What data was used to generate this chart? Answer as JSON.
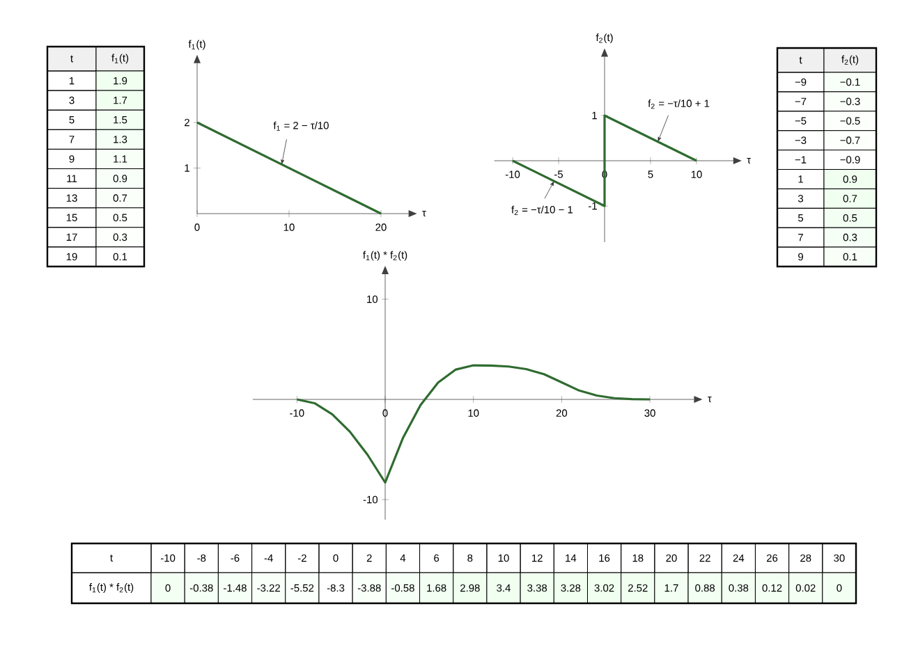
{
  "chart_data": [
    {
      "type": "heatmap",
      "ylabel": "t",
      "categories": [
        "f$_{1}$(t)"
      ],
      "y_categories": [
        "1",
        "3",
        "5",
        "7",
        "9",
        "11",
        "13",
        "15",
        "17",
        "19"
      ],
      "cells": [
        [
          1.9
        ],
        [
          1.7
        ],
        [
          1.5
        ],
        [
          1.3
        ],
        [
          1.1
        ],
        [
          0.9
        ],
        [
          0.7
        ],
        [
          0.5
        ],
        [
          0.3
        ],
        [
          0.1
        ]
      ],
      "cell_labels": [
        [
          "1.9"
        ],
        [
          "1.7"
        ],
        [
          "1.5"
        ],
        [
          "1.3"
        ],
        [
          "1.1"
        ],
        [
          "0.9"
        ],
        [
          "0.7"
        ],
        [
          "0.5"
        ],
        [
          "0.3"
        ],
        [
          "0.1"
        ]
      ]
    },
    {
      "type": "line",
      "xlabel": "τ",
      "ylabel": "f$_{1}$(t)",
      "color": "#2f6b30",
      "x": [
        0,
        20
      ],
      "values": [
        2,
        0
      ],
      "xlim": [
        0,
        23
      ],
      "ylim": [
        0,
        3.3
      ],
      "xticks": [
        0,
        10,
        20
      ],
      "yticks": [
        1,
        2
      ],
      "annotations": [
        {
          "text": "f$_{1}$ = 2 − τ/10",
          "x": 9.2,
          "y": 1.08
        }
      ]
    },
    {
      "type": "line",
      "xlabel": "τ",
      "ylabel": "f$_{2}$(t)",
      "color": "#2f6b30",
      "x": [
        -10,
        0,
        0,
        10
      ],
      "values": [
        0,
        -1,
        1,
        0
      ],
      "xlim": [
        -12,
        14
      ],
      "ylim": [
        -1.8,
        2.3
      ],
      "xticks": [
        -10,
        -5,
        0,
        5,
        10
      ],
      "yticks": [
        -1,
        1
      ],
      "annotations": [
        {
          "text": "f$_{2}$ = −τ/10 + 1",
          "x": 5.8,
          "y": 0.42
        },
        {
          "text": "f$_{2}$ = −τ/10 − 1",
          "x": -5.5,
          "y": -0.45
        }
      ]
    },
    {
      "type": "heatmap",
      "ylabel": "t",
      "categories": [
        "f$_{2}$(t)"
      ],
      "y_categories": [
        "−9",
        "−7",
        "−5",
        "−3",
        "−1",
        "1",
        "3",
        "5",
        "7",
        "9"
      ],
      "cells": [
        [
          -0.1
        ],
        [
          -0.3
        ],
        [
          -0.5
        ],
        [
          -0.7
        ],
        [
          -0.9
        ],
        [
          0.9
        ],
        [
          0.7
        ],
        [
          0.5
        ],
        [
          0.3
        ],
        [
          0.1
        ]
      ],
      "cell_labels": [
        [
          "−0.1"
        ],
        [
          "−0.3"
        ],
        [
          "−0.5"
        ],
        [
          "−0.7"
        ],
        [
          "−0.9"
        ],
        [
          "0.9"
        ],
        [
          "0.7"
        ],
        [
          "0.5"
        ],
        [
          "0.3"
        ],
        [
          "0.1"
        ]
      ]
    },
    {
      "type": "line",
      "xlabel": "τ",
      "ylabel": "f$_{1}$(t) * f$_{2}$(t)",
      "color": "#2f6b30",
      "x": [
        -10,
        -8,
        -6,
        -4,
        -2,
        0,
        2,
        4,
        6,
        8,
        10,
        12,
        14,
        16,
        18,
        20,
        22,
        24,
        26,
        28,
        30
      ],
      "values": [
        0,
        -0.38,
        -1.48,
        -3.22,
        -5.52,
        -8.3,
        -3.88,
        -0.58,
        1.68,
        2.98,
        3.4,
        3.38,
        3.28,
        3.02,
        2.52,
        1.7,
        0.88,
        0.38,
        0.12,
        0.02,
        0
      ],
      "xlim": [
        -15,
        35
      ],
      "ylim": [
        -12,
        12.5
      ],
      "xticks": [
        -10,
        0,
        10,
        20,
        30
      ],
      "yticks": [
        -10,
        10
      ]
    },
    {
      "type": "heatmap",
      "xlabel": "t",
      "categories": [
        "-10",
        "-8",
        "-6",
        "-4",
        "-2",
        "0",
        "2",
        "4",
        "6",
        "8",
        "10",
        "12",
        "14",
        "16",
        "18",
        "20",
        "22",
        "24",
        "26",
        "28",
        "30"
      ],
      "y_categories": [
        "f$_{1}$(t) * f$_{2}$(t)"
      ],
      "cells": [
        [
          0,
          -0.38,
          -1.48,
          -3.22,
          -5.52,
          -8.3,
          -3.88,
          -0.58,
          1.68,
          2.98,
          3.4,
          3.38,
          3.28,
          3.02,
          2.52,
          1.7,
          0.88,
          0.38,
          0.12,
          0.02,
          0
        ]
      ],
      "cell_labels": [
        [
          "0",
          "-0.38",
          "-1.48",
          "-3.22",
          "-5.52",
          "-8.3",
          "-3.88",
          "-0.58",
          "1.68",
          "2.98",
          "3.4",
          "3.38",
          "3.28",
          "3.02",
          "2.52",
          "1.7",
          "0.88",
          "0.38",
          "0.12",
          "0.02",
          "0"
        ]
      ]
    }
  ]
}
